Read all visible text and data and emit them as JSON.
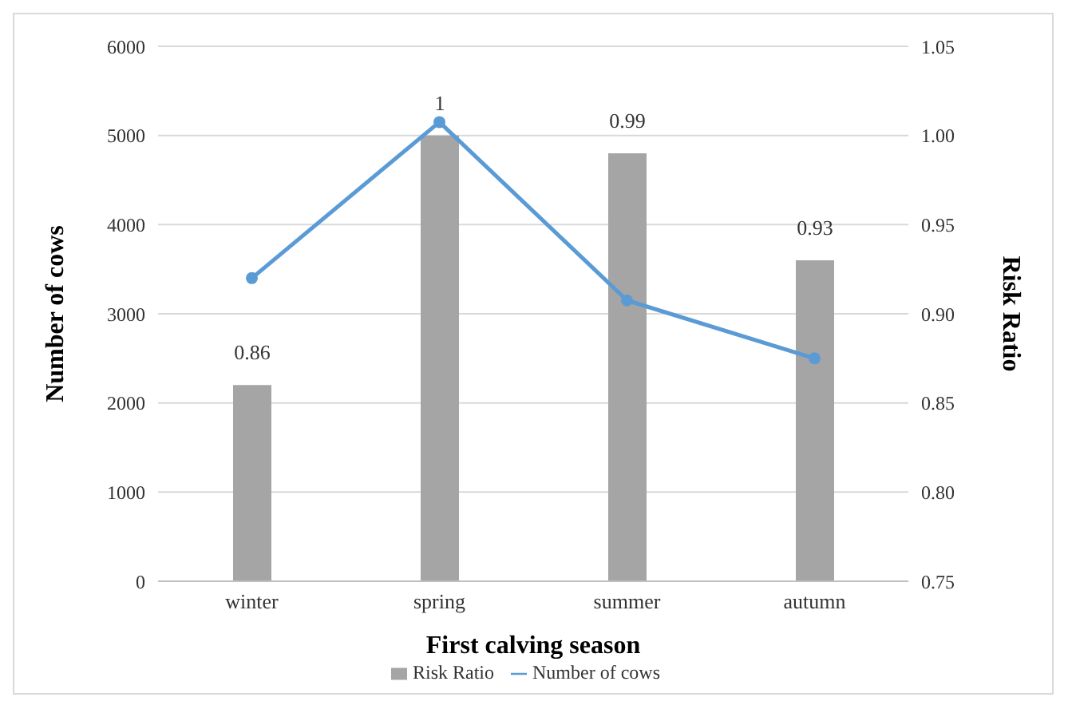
{
  "chart_data": {
    "type": "bar",
    "xlabel": "First calving season",
    "ylabel": "Number of cows",
    "y2label": "Risk Ratio",
    "categories": [
      "winter",
      "spring",
      "summer",
      "autumn"
    ],
    "series": [
      {
        "name": "Risk Ratio",
        "axis": "y2",
        "color": "#a5a5a5",
        "values": [
          0.86,
          1,
          0.99,
          0.93
        ],
        "value_labels": [
          "0.86",
          "1",
          "0.99",
          "0.93"
        ]
      },
      {
        "name": "Number of cows",
        "type": "line",
        "color": "#5b9bd5",
        "values": [
          3400,
          5150,
          3150,
          2500
        ]
      }
    ],
    "ylim": [
      0,
      6000
    ],
    "yticks": [
      0,
      1000,
      2000,
      3000,
      4000,
      5000,
      6000
    ],
    "y2lim": [
      0.75,
      1.05
    ],
    "y2ticks": [
      {
        "value": 0.75,
        "label": "0.75"
      },
      {
        "value": 0.8,
        "label": "0.80"
      },
      {
        "value": 0.85,
        "label": "0.85"
      },
      {
        "value": 0.9,
        "label": "0.90"
      },
      {
        "value": 0.95,
        "label": "0.95"
      },
      {
        "value": 1,
        "label": "1.00"
      },
      {
        "value": 1.05,
        "label": "1.05"
      }
    ],
    "grid": "y",
    "legend": "bottom",
    "marker": "circle",
    "line_style": "solid"
  }
}
